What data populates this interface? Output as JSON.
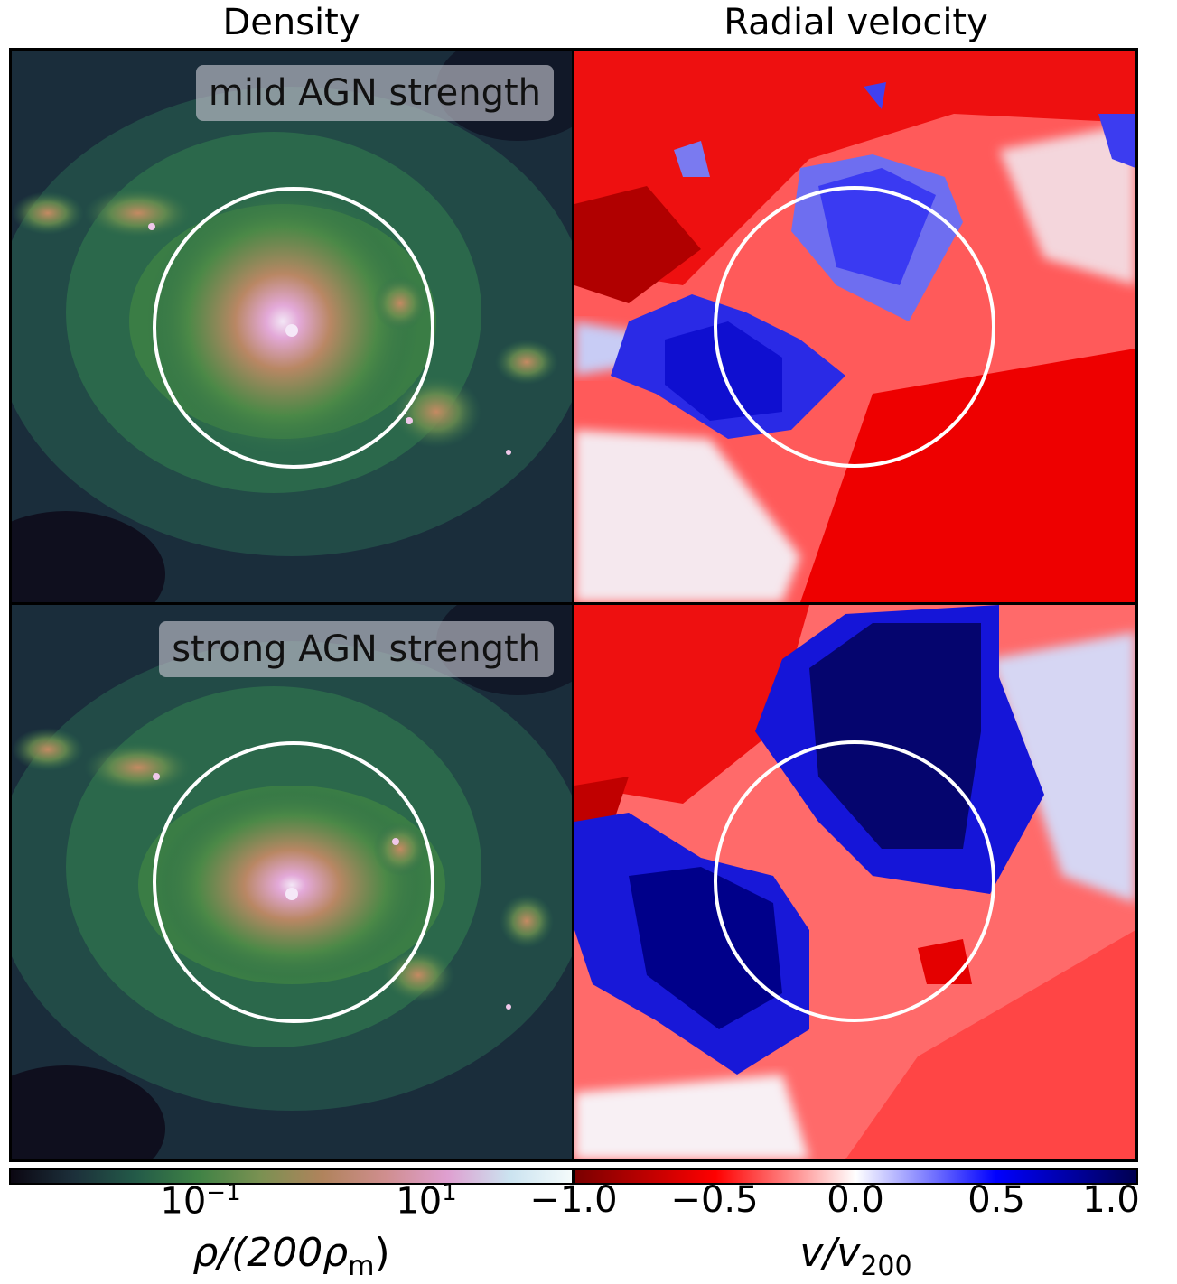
{
  "columns": {
    "density_title": "Density",
    "velocity_title": "Radial velocity"
  },
  "rows": {
    "top_label": "mild AGN strength",
    "bottom_label": "strong AGN strength"
  },
  "colorbars": {
    "density": {
      "label_prefix": "ρ/(200ρ",
      "label_sub": "m",
      "label_suffix": ")",
      "ticks": [
        {
          "text": "10",
          "exp": "−1"
        },
        {
          "text": "10",
          "exp": "1"
        }
      ],
      "colors": [
        "#0b0712",
        "#1c2f3a",
        "#235a48",
        "#3f8245",
        "#7a9152",
        "#b0835c",
        "#cf8e8e",
        "#df9fd0",
        "#cbe3f0",
        "#f4fbfb"
      ]
    },
    "velocity": {
      "label_main": "v/v",
      "label_sub": "200",
      "ticks": [
        "−1.0",
        "−0.5",
        "0.0",
        "0.5",
        "1.0"
      ],
      "colors": [
        "#7a0000",
        "#ff0000",
        "#ffffff",
        "#0000ff",
        "#000050"
      ]
    }
  },
  "chart_data": [
    {
      "type": "heatmap",
      "title": "Density",
      "row_label": "mild AGN strength",
      "colorscale": "log",
      "tick_labels": [
        "10^-1",
        "10^1"
      ],
      "colorbar_label": "ρ/(200ρ_m)",
      "annotation": "circle"
    },
    {
      "type": "heatmap",
      "title": "Radial velocity",
      "row_label": "mild AGN strength",
      "colorscale": "linear",
      "range": [
        -1.0,
        1.0
      ],
      "tick_labels": [
        "-1.0",
        "-0.5",
        "0.0",
        "0.5",
        "1.0"
      ],
      "colorbar_label": "v/v_200",
      "annotation": "circle"
    },
    {
      "type": "heatmap",
      "title": "Density",
      "row_label": "strong AGN strength",
      "colorscale": "log",
      "tick_labels": [
        "10^-1",
        "10^1"
      ],
      "colorbar_label": "ρ/(200ρ_m)",
      "annotation": "circle"
    },
    {
      "type": "heatmap",
      "title": "Radial velocity",
      "row_label": "strong AGN strength",
      "colorscale": "linear",
      "range": [
        -1.0,
        1.0
      ],
      "tick_labels": [
        "-1.0",
        "-0.5",
        "0.0",
        "0.5",
        "1.0"
      ],
      "colorbar_label": "v/v_200",
      "annotation": "circle"
    }
  ]
}
